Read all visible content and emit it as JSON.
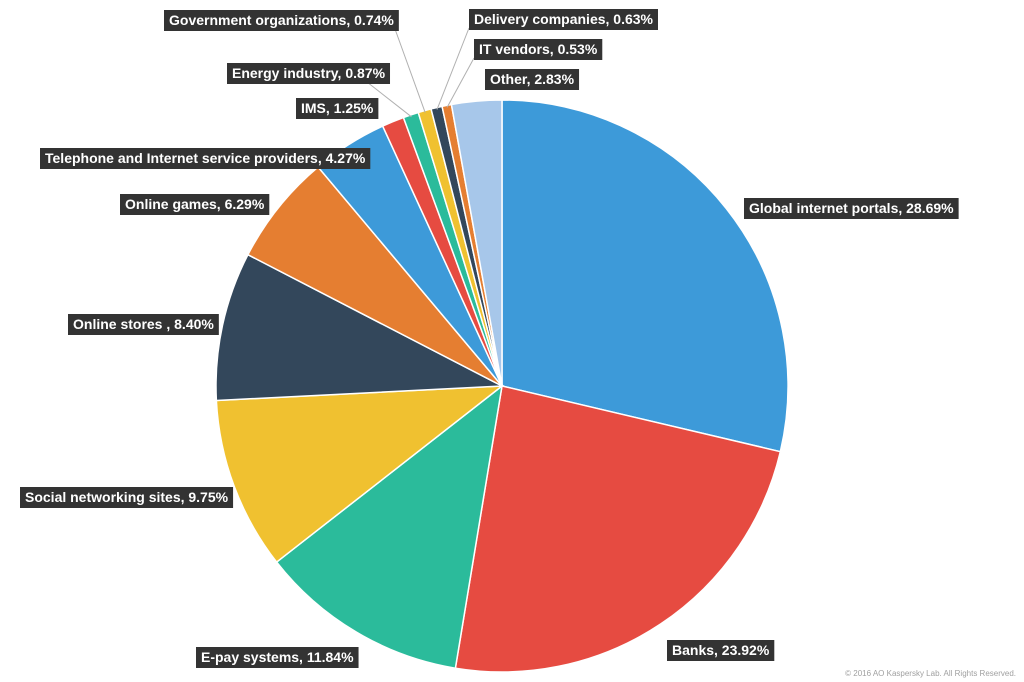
{
  "chart_data": {
    "type": "pie",
    "title": "",
    "slices": [
      {
        "label": "Global internet portals, 28.69%",
        "value": 28.69,
        "color": "#3d9ad9"
      },
      {
        "label": "Banks, 23.92%",
        "value": 23.92,
        "color": "#e64b41"
      },
      {
        "label": "E-pay systems, 11.84%",
        "value": 11.84,
        "color": "#2bbb9b"
      },
      {
        "label": "Social networking sites, 9.75%",
        "value": 9.75,
        "color": "#f0c130"
      },
      {
        "label": "Online stores , 8.40%",
        "value": 8.4,
        "color": "#33475b"
      },
      {
        "label": "Online games, 6.29%",
        "value": 6.29,
        "color": "#e57e31"
      },
      {
        "label": "Telephone and Internet service providers, 4.27%",
        "value": 4.27,
        "color": "#3d9ad9"
      },
      {
        "label": "IMS, 1.25%",
        "value": 1.25,
        "color": "#e64b41"
      },
      {
        "label": "Energy industry, 0.87%",
        "value": 0.87,
        "color": "#2bbb9b"
      },
      {
        "label": "Government organizations, 0.74%",
        "value": 0.74,
        "color": "#f0c130"
      },
      {
        "label": "Delivery companies, 0.63%",
        "value": 0.63,
        "color": "#33475b"
      },
      {
        "label": "IT vendors, 0.53%",
        "value": 0.53,
        "color": "#e57e31"
      },
      {
        "label": "Other, 2.83%",
        "value": 2.83,
        "color": "#a7c7ea"
      }
    ]
  },
  "footer": {
    "copyright": "© 2016 AO Kaspersky Lab. All Rights Reserved."
  }
}
